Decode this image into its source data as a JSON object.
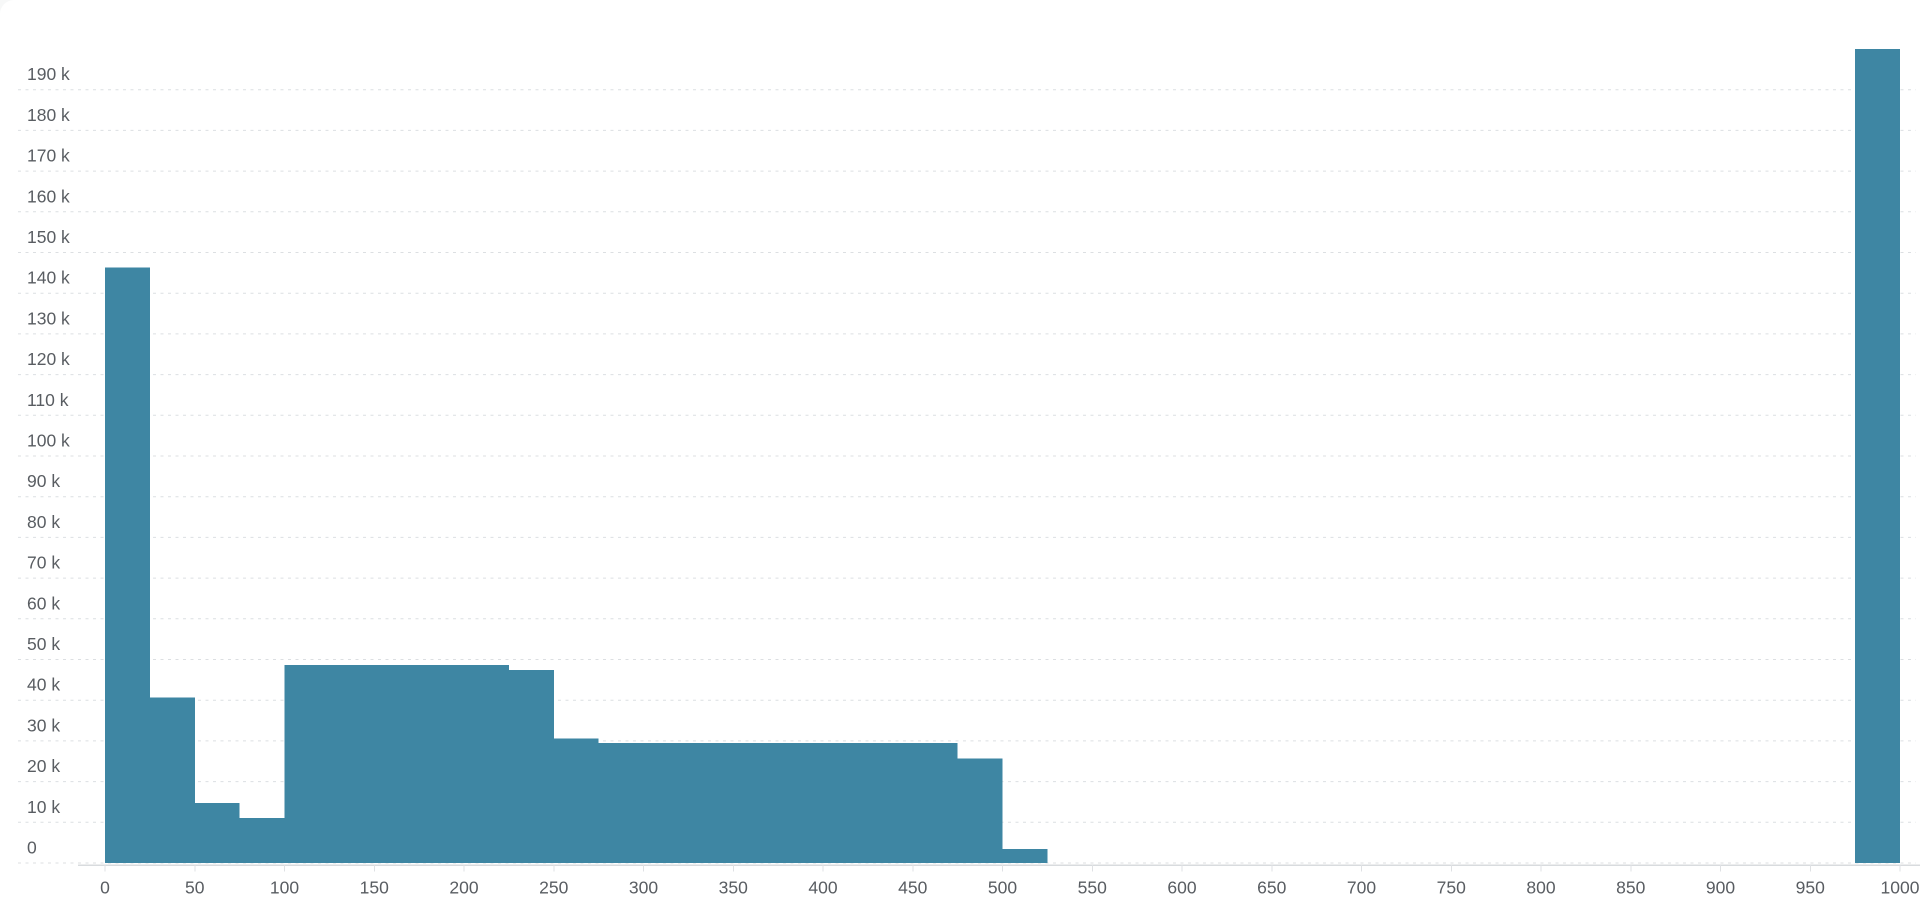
{
  "page": {
    "background_color": "#f7f8f8",
    "card_color": "#ffffff"
  },
  "chart_data": {
    "type": "bar",
    "subtype": "histogram",
    "title": "",
    "xlabel": "",
    "ylabel": "",
    "legend": "none",
    "grid": "horizontal-dashed",
    "xlim": [
      0,
      1000
    ],
    "ylim": [
      0,
      200000
    ],
    "bins": {
      "start": 0,
      "width": 25,
      "count": 40
    },
    "values": [
      146300,
      40700,
      14800,
      11000,
      48600,
      48600,
      48600,
      48600,
      48600,
      47400,
      30600,
      29500,
      29500,
      29500,
      29500,
      29500,
      29500,
      29500,
      29500,
      25700,
      3400,
      0,
      0,
      0,
      0,
      0,
      0,
      0,
      0,
      0,
      0,
      0,
      0,
      0,
      0,
      0,
      0,
      0,
      0,
      200000
    ],
    "x_ticks": [
      0,
      50,
      100,
      150,
      200,
      250,
      300,
      350,
      400,
      450,
      500,
      550,
      600,
      650,
      700,
      750,
      800,
      850,
      900,
      950,
      1000
    ],
    "x_tick_labels": [
      "0",
      "50",
      "100",
      "150",
      "200",
      "250",
      "300",
      "350",
      "400",
      "450",
      "500",
      "550",
      "600",
      "650",
      "700",
      "750",
      "800",
      "850",
      "900",
      "950",
      "1000"
    ],
    "y_ticks": [
      0,
      10000,
      20000,
      30000,
      40000,
      50000,
      60000,
      70000,
      80000,
      90000,
      100000,
      110000,
      120000,
      130000,
      140000,
      150000,
      160000,
      170000,
      180000,
      190000
    ],
    "y_tick_labels": [
      "0",
      "10 k",
      "20 k",
      "30 k",
      "40 k",
      "50 k",
      "60 k",
      "70 k",
      "80 k",
      "90 k",
      "100 k",
      "110 k",
      "120 k",
      "130 k",
      "140 k",
      "150 k",
      "160 k",
      "170 k",
      "180 k",
      "190 k"
    ],
    "bar_color": "#3e86a3"
  },
  "colors": {
    "grid_line": "#dcdfe2",
    "axis_line": "#d8dbde",
    "tick_mark": "#dfe1e4",
    "tick_label": "#595d62"
  }
}
